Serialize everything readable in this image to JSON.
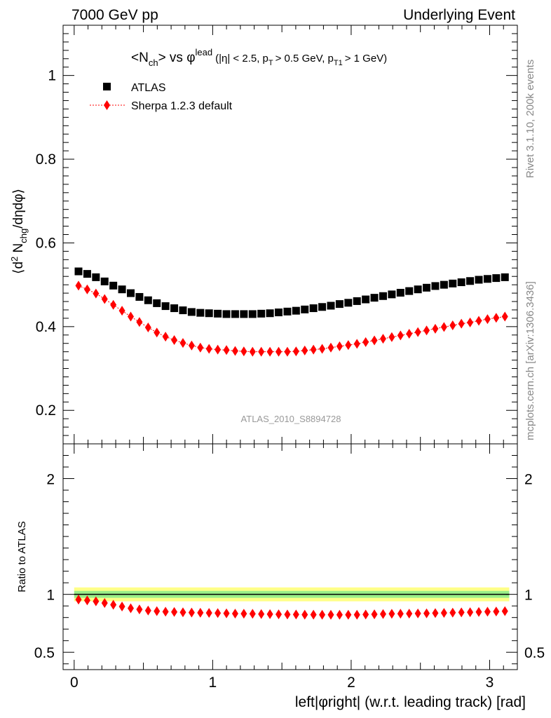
{
  "header": {
    "left": "7000 GeV pp",
    "right": "Underlying Event"
  },
  "side": {
    "rivet": "Rivet 3.1.10,  200k events",
    "mcplots": "mcplots.cern.ch [arXiv:1306.3436]"
  },
  "title": {
    "prefix": "<N",
    "ch_sub": "ch",
    "vs": "> vs φ",
    "lead_sup": "lead",
    "cuts_a": "(|η| < 2.5, p",
    "pt_sub": "T",
    "cuts_b": "> 0.5 GeV, p",
    "pt1_sub": "T1",
    "cuts_c": "> 1 GeV)"
  },
  "analysis_id": "ATLAS_2010_S8894728",
  "ylabel_main": "⟨d² N_chg/dηdφ⟩",
  "ylabel_ratio": "Ratio to ATLAS",
  "xlabel": "left|φright| (w.r.t. leading track) [rad]",
  "legend": [
    {
      "name": "ATLAS",
      "marker": "square",
      "color": "#000000"
    },
    {
      "name": "Sherpa 1.2.3 default",
      "marker": "diamond",
      "color": "#ff0000"
    }
  ],
  "chart_data": {
    "type": "scatter",
    "xlim": [
      -0.08,
      3.2
    ],
    "ylim_main": [
      0.12,
      1.12
    ],
    "ylim_ratio": [
      0.35,
      2.3
    ],
    "yticks_main": [
      "0.2",
      "0.4",
      "0.6",
      "0.8",
      "1"
    ],
    "yticks_main_values": [
      0.2,
      0.4,
      0.6,
      0.8,
      1.0
    ],
    "yticks_ratio": [
      "0.5",
      "1",
      "2"
    ],
    "yticks_ratio_values": [
      0.5,
      1,
      2
    ],
    "xticks": [
      "0",
      "1",
      "2",
      "3"
    ],
    "xticks_values": [
      0,
      1,
      2,
      3
    ],
    "ratio_band": {
      "inner": [
        0.97,
        1.03
      ],
      "outer": [
        0.94,
        1.06
      ]
    },
    "x": [
      0.0314,
      0.0942,
      0.1571,
      0.2199,
      0.2827,
      0.3456,
      0.4084,
      0.4712,
      0.5341,
      0.5969,
      0.6597,
      0.7226,
      0.7854,
      0.8482,
      0.9111,
      0.9739,
      1.0367,
      1.0996,
      1.1624,
      1.2252,
      1.2881,
      1.3509,
      1.4137,
      1.4765,
      1.5394,
      1.6022,
      1.665,
      1.7279,
      1.7907,
      1.8535,
      1.9164,
      1.9792,
      2.042,
      2.1049,
      2.1677,
      2.2305,
      2.2934,
      2.3562,
      2.419,
      2.4819,
      2.5447,
      2.6075,
      2.6704,
      2.7332,
      2.796,
      2.8588,
      2.9217,
      2.9845,
      3.0473,
      3.1102
    ],
    "series": [
      {
        "name": "ATLAS",
        "values": [
          0.532,
          0.526,
          0.518,
          0.508,
          0.498,
          0.489,
          0.48,
          0.471,
          0.463,
          0.456,
          0.449,
          0.444,
          0.439,
          0.435,
          0.433,
          0.432,
          0.431,
          0.43,
          0.43,
          0.43,
          0.43,
          0.431,
          0.432,
          0.434,
          0.436,
          0.438,
          0.441,
          0.444,
          0.447,
          0.45,
          0.454,
          0.457,
          0.461,
          0.465,
          0.469,
          0.473,
          0.477,
          0.481,
          0.485,
          0.489,
          0.493,
          0.497,
          0.5,
          0.503,
          0.506,
          0.509,
          0.512,
          0.514,
          0.516,
          0.518
        ]
      },
      {
        "name": "Sherpa 1.2.3 default",
        "values": [
          0.498,
          0.489,
          0.479,
          0.466,
          0.452,
          0.438,
          0.424,
          0.411,
          0.398,
          0.386,
          0.376,
          0.368,
          0.361,
          0.355,
          0.35,
          0.347,
          0.345,
          0.344,
          0.342,
          0.341,
          0.34,
          0.34,
          0.34,
          0.34,
          0.34,
          0.341,
          0.343,
          0.345,
          0.347,
          0.35,
          0.353,
          0.356,
          0.359,
          0.363,
          0.367,
          0.371,
          0.375,
          0.379,
          0.383,
          0.387,
          0.391,
          0.395,
          0.399,
          0.403,
          0.407,
          0.41,
          0.414,
          0.418,
          0.421,
          0.424
        ]
      },
      {
        "name": "ratio",
        "values": [
          0.955,
          0.948,
          0.94,
          0.925,
          0.91,
          0.895,
          0.88,
          0.87,
          0.86,
          0.855,
          0.85,
          0.848,
          0.845,
          0.843,
          0.841,
          0.84,
          0.838,
          0.836,
          0.834,
          0.833,
          0.832,
          0.83,
          0.829,
          0.828,
          0.826,
          0.826,
          0.825,
          0.825,
          0.824,
          0.824,
          0.824,
          0.824,
          0.824,
          0.826,
          0.828,
          0.83,
          0.832,
          0.833,
          0.834,
          0.835,
          0.836,
          0.838,
          0.84,
          0.842,
          0.844,
          0.846,
          0.848,
          0.85,
          0.852,
          0.855
        ]
      }
    ]
  }
}
